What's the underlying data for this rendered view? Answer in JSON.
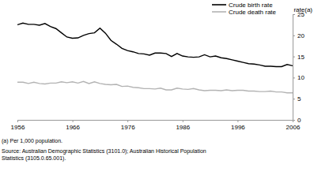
{
  "chart_data": {
    "type": "line",
    "y_label": "rate(a)",
    "annotations": [
      "(a) Per 1,000 population.",
      "Source: Australian Demographic Statistics (3101.0); Australian Historical Population",
      "Statistics (3105.0.65.001)."
    ],
    "x": [
      1956,
      1957,
      1958,
      1959,
      1960,
      1961,
      1962,
      1963,
      1964,
      1965,
      1966,
      1967,
      1968,
      1969,
      1970,
      1971,
      1972,
      1973,
      1974,
      1975,
      1976,
      1977,
      1978,
      1979,
      1980,
      1981,
      1982,
      1983,
      1984,
      1985,
      1986,
      1987,
      1988,
      1989,
      1990,
      1991,
      1992,
      1993,
      1994,
      1995,
      1996,
      1997,
      1998,
      1999,
      2000,
      2001,
      2002,
      2003,
      2004,
      2005,
      2006
    ],
    "series": [
      {
        "name": "Crude birth rate",
        "color": "#000000",
        "values": [
          22.5,
          22.9,
          22.6,
          22.6,
          22.4,
          22.8,
          22.1,
          21.6,
          20.6,
          19.6,
          19.3,
          19.4,
          20.0,
          20.4,
          20.6,
          21.7,
          20.5,
          18.8,
          17.9,
          16.9,
          16.4,
          16.1,
          15.7,
          15.6,
          15.3,
          15.8,
          15.8,
          15.7,
          15.0,
          15.7,
          15.1,
          14.9,
          14.8,
          14.9,
          15.4,
          14.9,
          15.1,
          14.7,
          14.5,
          14.2,
          13.9,
          13.6,
          13.3,
          13.2,
          13.0,
          12.7,
          12.7,
          12.6,
          12.6,
          13.1,
          12.8
        ]
      },
      {
        "name": "Crude death rate",
        "color": "#b3b3b3",
        "values": [
          8.9,
          8.9,
          8.6,
          8.9,
          8.6,
          8.5,
          8.7,
          8.7,
          9.0,
          8.8,
          9.0,
          8.7,
          9.1,
          8.6,
          9.0,
          8.6,
          8.4,
          8.3,
          8.4,
          7.9,
          8.0,
          7.7,
          7.6,
          7.4,
          7.4,
          7.3,
          7.5,
          7.1,
          7.1,
          7.5,
          7.3,
          7.2,
          7.4,
          7.1,
          6.9,
          7.0,
          7.0,
          6.9,
          7.1,
          6.9,
          7.0,
          7.0,
          6.8,
          6.8,
          6.7,
          6.7,
          6.8,
          6.6,
          6.6,
          6.4,
          6.4
        ]
      }
    ],
    "xlim": [
      1956,
      2006
    ],
    "xticks": [
      1956,
      1966,
      1976,
      1986,
      1996,
      2006
    ],
    "ylim": [
      0,
      25
    ],
    "yticks": [
      0,
      5,
      10,
      15,
      20,
      25
    ],
    "grid": false,
    "legend": "top-right"
  }
}
